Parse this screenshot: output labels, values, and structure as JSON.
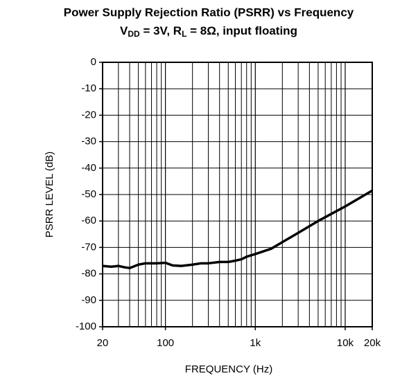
{
  "chart_data": {
    "type": "line",
    "title": "Power Supply Rejection Ratio (PSRR) vs Frequency",
    "subtitle": [
      {
        "text": "V"
      },
      {
        "text": "DD",
        "subscript": true
      },
      {
        "text": " = 3V, R"
      },
      {
        "text": "L",
        "subscript": true
      },
      {
        "text": " = 8Ω, input floating"
      }
    ],
    "xlabel": "FREQUENCY (Hz)",
    "ylabel": "PSRR LEVEL (dB)",
    "xscale": "log",
    "xlim": [
      20,
      20000
    ],
    "xticks": [
      20,
      100,
      {
        "value": 1000,
        "label": "1k"
      },
      {
        "value": 10000,
        "label": "10k"
      },
      {
        "value": 20000,
        "label": "20k"
      }
    ],
    "xminor": [
      30,
      40,
      50,
      60,
      70,
      80,
      90,
      200,
      300,
      400,
      500,
      600,
      700,
      800,
      900,
      2000,
      3000,
      4000,
      5000,
      6000,
      7000,
      8000,
      9000
    ],
    "ylim": [
      -100,
      0
    ],
    "yticks": [
      0,
      -10,
      -20,
      -30,
      -40,
      -50,
      -60,
      -70,
      -80,
      -90,
      -100
    ],
    "grid": true,
    "x": [
      20,
      25,
      30,
      35,
      40,
      50,
      60,
      80,
      100,
      120,
      150,
      200,
      250,
      300,
      400,
      500,
      600,
      700,
      800,
      1000,
      1500,
      2000,
      3000,
      5000,
      10000,
      20000
    ],
    "series": [
      {
        "color": "#000000",
        "values": [
          -77,
          -77.3,
          -77,
          -77.5,
          -77.8,
          -76.5,
          -76,
          -76,
          -75.8,
          -76.8,
          -77,
          -76.5,
          -76,
          -76,
          -75.5,
          -75.5,
          -75,
          -74.5,
          -73.5,
          -72.5,
          -70.5,
          -68,
          -64.5,
          -60,
          -54.5,
          -48.5
        ]
      }
    ]
  }
}
